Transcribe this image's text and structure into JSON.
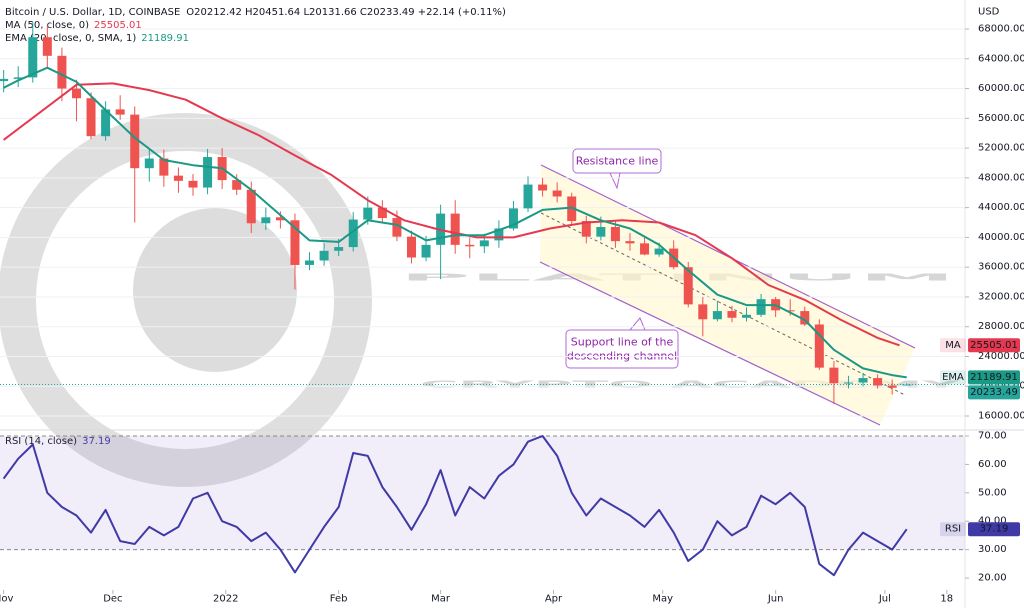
{
  "chart_data": [
    {
      "type": "candlestick",
      "title": "Bitcoin / U.S. Dollar, 1D, COINBASE",
      "ohlc_text": "O20212.42 H20451.64 L20131.66 C20233.49 +22.14 (+0.11%)",
      "y_axis_label": "USD",
      "watermark": [
        "PLATINUM",
        "CRYPTO ACADEMY"
      ],
      "annotations": {
        "resistance": [
          "Resistance line"
        ],
        "support": [
          "Support line of the",
          "descending channel"
        ]
      },
      "up_color": "#26a69a",
      "down_color": "#ef5350",
      "grid": true,
      "xlim": [
        -1,
        264
      ],
      "ylim": [
        14390,
        71900
      ],
      "yticks": [
        {
          "value": 16000,
          "label": "16000.00"
        },
        {
          "value": 20000,
          "label": "20000.00"
        },
        {
          "value": 24000,
          "label": "24000.00"
        },
        {
          "value": 28000,
          "label": "28000.00"
        },
        {
          "value": 32000,
          "label": "32000.00"
        },
        {
          "value": 36000,
          "label": "36000.00"
        },
        {
          "value": 40000,
          "label": "40000.00"
        },
        {
          "value": 44000,
          "label": "44000.00"
        },
        {
          "value": 48000,
          "label": "48000.00"
        },
        {
          "value": 52000,
          "label": "52000.00"
        },
        {
          "value": 56000,
          "label": "56000.00"
        },
        {
          "value": 60000,
          "label": "60000.00"
        },
        {
          "value": 64000,
          "label": "64000.00"
        },
        {
          "value": 68000,
          "label": "68000.00"
        }
      ],
      "x": [
        0,
        4,
        8,
        12,
        16,
        20,
        24,
        28,
        32,
        36,
        40,
        44,
        48,
        52,
        56,
        60,
        64,
        68,
        72,
        76,
        80,
        84,
        88,
        92,
        96,
        100,
        104,
        108,
        112,
        116,
        120,
        124,
        128,
        132,
        136,
        140,
        144,
        148,
        152,
        156,
        160,
        164,
        168,
        172,
        176,
        180,
        184,
        188,
        192,
        196,
        200,
        204,
        208,
        212,
        216,
        220,
        224,
        228,
        232,
        236,
        240,
        244,
        248
      ],
      "open": [
        61000,
        61300,
        61500,
        66900,
        64400,
        60000,
        58700,
        53600,
        57200,
        56500,
        49300,
        50600,
        48300,
        47600,
        46700,
        50800,
        47700,
        46400,
        41900,
        42700,
        42300,
        36300,
        36900,
        38200,
        38700,
        42400,
        44000,
        42600,
        40100,
        37300,
        39000,
        43200,
        39000,
        38800,
        39600,
        41200,
        43900,
        47100,
        46300,
        45500,
        42200,
        40100,
        41400,
        39500,
        39200,
        37700,
        38500,
        36000,
        31000,
        29000,
        30100,
        29200,
        29600,
        31700,
        30200,
        30100,
        28300,
        22500,
        20400,
        20500,
        21100,
        20100,
        20212.42
      ],
      "high": [
        62500,
        63000,
        69000,
        68500,
        65500,
        61200,
        59500,
        58300,
        59100,
        57600,
        51900,
        51800,
        49400,
        48500,
        51900,
        52000,
        48500,
        47500,
        44000,
        43500,
        43200,
        38000,
        39200,
        39800,
        43400,
        45500,
        45000,
        43600,
        40900,
        40200,
        44400,
        45000,
        40000,
        40500,
        42300,
        44900,
        48200,
        48000,
        47400,
        46000,
        42900,
        42800,
        42200,
        40600,
        40000,
        39300,
        39600,
        36700,
        32000,
        31500,
        30800,
        30600,
        32400,
        32000,
        31700,
        30700,
        29000,
        23400,
        21400,
        21800,
        21600,
        20900,
        20451.64
      ],
      "low": [
        59500,
        60200,
        60800,
        62700,
        58300,
        55600,
        53200,
        53000,
        55800,
        42000,
        47500,
        46800,
        46000,
        45600,
        45800,
        46500,
        45700,
        40600,
        41000,
        41200,
        33000,
        35600,
        36200,
        37500,
        38100,
        41700,
        41900,
        39500,
        36500,
        36800,
        34400,
        37800,
        37200,
        37900,
        38600,
        40900,
        43400,
        45500,
        44700,
        41600,
        39200,
        39600,
        38600,
        38200,
        37600,
        37400,
        35700,
        30600,
        26700,
        28700,
        28600,
        28700,
        29300,
        29300,
        29500,
        28100,
        22200,
        17600,
        19700,
        20000,
        19700,
        18900,
        20131.66
      ],
      "close": [
        61300,
        61500,
        66900,
        64400,
        60000,
        58700,
        53600,
        57200,
        56500,
        49300,
        50600,
        48300,
        47600,
        46700,
        50800,
        47700,
        46400,
        41900,
        42700,
        42300,
        36300,
        36900,
        38200,
        38700,
        42400,
        44000,
        42600,
        40100,
        37300,
        39000,
        43200,
        39000,
        38800,
        39600,
        41200,
        43900,
        47100,
        46300,
        45500,
        42200,
        40100,
        41400,
        39500,
        39200,
        37700,
        38500,
        36000,
        31000,
        29000,
        30100,
        29200,
        29600,
        31700,
        30200,
        30100,
        28300,
        22500,
        20400,
        20500,
        21100,
        20100,
        19800,
        20233.49
      ],
      "indicators": [
        {
          "name": "MA (50, close, 0)",
          "short": "MA",
          "color": "#e53950",
          "x": [
            0,
            20,
            30,
            40,
            50,
            60,
            70,
            80,
            90,
            100,
            110,
            120,
            130,
            140,
            150,
            160,
            170,
            180,
            190,
            200,
            210,
            220,
            230,
            240,
            246
          ],
          "values": [
            53100,
            60500,
            60700,
            59800,
            58500,
            56000,
            53750,
            51000,
            48400,
            45000,
            42300,
            41000,
            40000,
            40000,
            41200,
            42000,
            42300,
            42000,
            40300,
            37200,
            33600,
            31600,
            28900,
            26500,
            25505.01
          ]
        },
        {
          "name": "EMA (20, close, 0, SMA, 1)",
          "short": "EMA",
          "color": "#1a9985",
          "x": [
            0,
            4,
            12,
            20,
            28,
            36,
            44,
            52,
            60,
            68,
            76,
            84,
            92,
            100,
            108,
            116,
            124,
            132,
            140,
            148,
            156,
            164,
            172,
            180,
            188,
            196,
            204,
            212,
            220,
            228,
            236,
            244,
            248
          ],
          "values": [
            60100,
            61100,
            62800,
            60900,
            57100,
            53400,
            50400,
            49700,
            49300,
            46400,
            43000,
            39600,
            39400,
            42300,
            41700,
            39600,
            40300,
            40300,
            41700,
            43700,
            44000,
            42300,
            41200,
            39000,
            35600,
            32300,
            30900,
            30900,
            28900,
            24900,
            22400,
            21500,
            21189.91
          ]
        }
      ]
    },
    {
      "type": "line",
      "title": "RSI (14, close)",
      "short": "RSI",
      "color": "#3f3aa6",
      "band": [
        30,
        70
      ],
      "band_color": "#7e57c2",
      "grid": false,
      "xlim": [
        -1,
        264
      ],
      "ylim": [
        15.8,
        71.4
      ],
      "yticks": [
        {
          "value": 20,
          "label": "20.00"
        },
        {
          "value": 30,
          "label": "30.00"
        },
        {
          "value": 40,
          "label": "40.00"
        },
        {
          "value": 50,
          "label": "50.00"
        },
        {
          "value": 60,
          "label": "60.00"
        },
        {
          "value": 70,
          "label": "70.00"
        }
      ],
      "xticks": [
        {
          "value": 0,
          "label": "Nov"
        },
        {
          "value": 30,
          "label": "Dec"
        },
        {
          "value": 61,
          "label": "2022"
        },
        {
          "value": 92,
          "label": "Feb"
        },
        {
          "value": 120,
          "label": "Mar"
        },
        {
          "value": 151,
          "label": "Apr"
        },
        {
          "value": 181,
          "label": "May"
        },
        {
          "value": 212,
          "label": "Jun"
        },
        {
          "value": 242,
          "label": "Jul"
        },
        {
          "value": 259,
          "label": "18"
        }
      ],
      "x": [
        0,
        4,
        8,
        12,
        16,
        20,
        24,
        28,
        32,
        36,
        40,
        44,
        48,
        52,
        56,
        60,
        64,
        68,
        72,
        76,
        80,
        84,
        88,
        92,
        96,
        100,
        104,
        108,
        112,
        116,
        120,
        124,
        128,
        132,
        136,
        140,
        144,
        148,
        152,
        156,
        160,
        164,
        168,
        172,
        176,
        180,
        184,
        188,
        192,
        196,
        200,
        204,
        208,
        212,
        216,
        220,
        224,
        228,
        232,
        236,
        240,
        244,
        248
      ],
      "values": [
        55,
        62,
        67,
        50,
        45,
        42,
        36,
        44,
        33,
        32,
        38,
        35,
        38,
        48,
        50,
        40,
        38,
        33,
        36,
        30,
        22,
        30,
        38,
        45,
        64,
        63,
        52,
        45,
        37,
        46,
        58,
        42,
        52,
        48,
        56,
        60,
        68,
        70,
        63,
        50,
        42,
        48,
        45,
        42,
        38,
        44,
        36,
        26,
        30,
        40,
        35,
        38,
        49,
        46,
        50,
        45,
        25,
        21,
        30,
        36,
        33,
        30,
        37.19
      ]
    }
  ]
}
